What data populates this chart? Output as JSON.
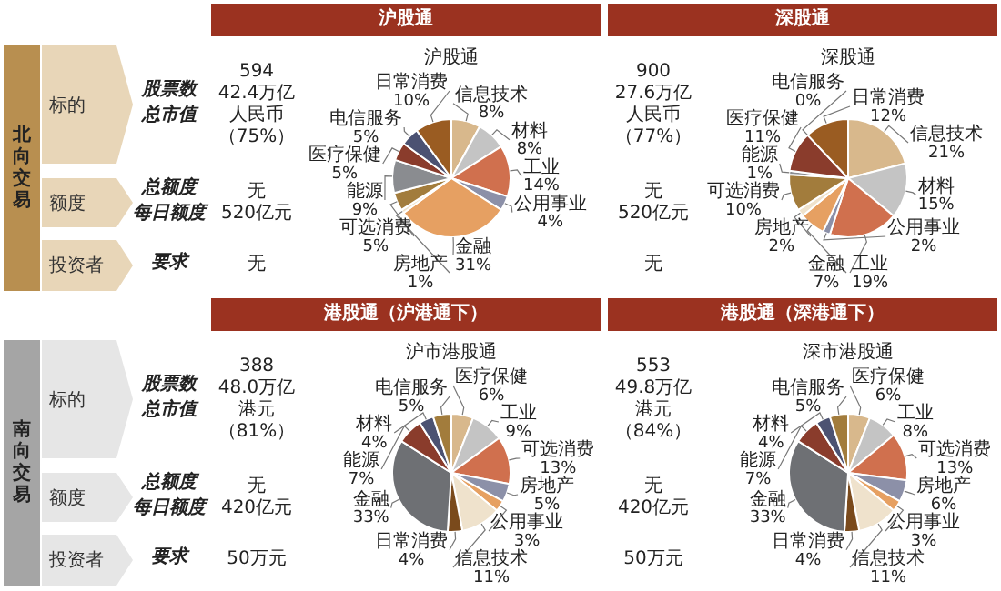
{
  "chart_data": [
    {
      "type": "other",
      "title": "北向交易",
      "annotations": [
        "标的",
        "额度",
        "投资者",
        "股票数",
        "总市值",
        "总额度",
        "每日额度",
        "要求"
      ]
    },
    {
      "type": "other",
      "title": "南向交易",
      "annotations": [
        "标的",
        "额度",
        "投资者",
        "股票数",
        "总市值",
        "总额度",
        "每日额度",
        "要求"
      ]
    },
    {
      "type": "pie",
      "title": "沪股通",
      "subtitle": "沪股通",
      "legend": false,
      "categories": [
        "信息技术",
        "材料",
        "工业",
        "公用事业",
        "金融",
        "房地产",
        "可选消费",
        "能源",
        "医疗保健",
        "电信服务",
        "日常消费"
      ],
      "values": [
        8,
        8,
        14,
        4,
        31,
        1,
        5,
        9,
        5,
        5,
        10
      ],
      "value_labels": [
        "8%",
        "8%",
        "14%",
        "4%",
        "31%",
        "1%",
        "5%",
        "9%",
        "5%",
        "5%",
        "10%"
      ],
      "colors": [
        "#d8b88c",
        "#c4c4c4",
        "#d0704e",
        "#8c90a8",
        "#e6a062",
        "#efe2cc",
        "#a27c3c",
        "#8a8c90",
        "#8a3c2c",
        "#4c5272",
        "#9a5c22"
      ],
      "annotations": [
        "594",
        "42.4万亿人民币",
        "（75%）",
        "无",
        "520亿元",
        "无"
      ]
    },
    {
      "type": "pie",
      "title": "深股通",
      "subtitle": "深股通",
      "legend": false,
      "categories": [
        "信息技术",
        "材料",
        "工业",
        "公用事业",
        "金融",
        "房地产",
        "可选消费",
        "能源",
        "医疗保健",
        "电信服务",
        "日常消费"
      ],
      "values": [
        21,
        15,
        19,
        2,
        7,
        2,
        10,
        1,
        11,
        0,
        12
      ],
      "value_labels": [
        "21%",
        "15%",
        "19%",
        "2%",
        "7%",
        "2%",
        "10%",
        "1%",
        "11%",
        "0%",
        "12%"
      ],
      "colors": [
        "#d8b88c",
        "#c4c4c4",
        "#d0704e",
        "#8c90a8",
        "#e6a062",
        "#efe2cc",
        "#a27c3c",
        "#8a8c90",
        "#8a3c2c",
        "#4c5272",
        "#9a5c22"
      ],
      "annotations": [
        "900",
        "27.6万亿人民币",
        "（77%）",
        "无",
        "520亿元",
        "无"
      ]
    },
    {
      "type": "pie",
      "title": "港股通（沪港通下）",
      "subtitle": "沪市港股通",
      "legend": false,
      "categories": [
        "医疗保健",
        "工业",
        "可选消费",
        "房地产",
        "公用事业",
        "信息技术",
        "日常消费",
        "金融",
        "能源",
        "材料",
        "电信服务"
      ],
      "values": [
        6,
        9,
        13,
        5,
        3,
        11,
        4,
        33,
        7,
        4,
        5
      ],
      "value_labels": [
        "6%",
        "9%",
        "13%",
        "5%",
        "3%",
        "11%",
        "4%",
        "33%",
        "7%",
        "4%",
        "5%"
      ],
      "colors": [
        "#d8b88c",
        "#c4c4c4",
        "#d0704e",
        "#8c90a8",
        "#e6a062",
        "#efe2cc",
        "#7a4a1c",
        "#6e7074",
        "#8a3c2c",
        "#4c5272",
        "#a27c3c"
      ],
      "annotations": [
        "388",
        "48.0万亿港元",
        "（81%）",
        "无",
        "420亿元",
        "50万元"
      ]
    },
    {
      "type": "pie",
      "title": "港股通（深港通下）",
      "subtitle": "深市港股通",
      "legend": false,
      "categories": [
        "医疗保健",
        "工业",
        "可选消费",
        "房地产",
        "公用事业",
        "信息技术",
        "日常消费",
        "金融",
        "能源",
        "材料",
        "电信服务"
      ],
      "values": [
        6,
        8,
        13,
        6,
        3,
        11,
        4,
        33,
        7,
        4,
        5
      ],
      "value_labels": [
        "6%",
        "8%",
        "13%",
        "6%",
        "3%",
        "11%",
        "4%",
        "33%",
        "7%",
        "4%",
        "5%"
      ],
      "colors": [
        "#d8b88c",
        "#c4c4c4",
        "#d0704e",
        "#8c90a8",
        "#e6a062",
        "#efe2cc",
        "#7a4a1c",
        "#6e7074",
        "#8a3c2c",
        "#4c5272",
        "#a27c3c"
      ],
      "annotations": [
        "553",
        "49.8万亿港元",
        "（84%）",
        "无",
        "420亿元",
        "50万元"
      ]
    }
  ]
}
